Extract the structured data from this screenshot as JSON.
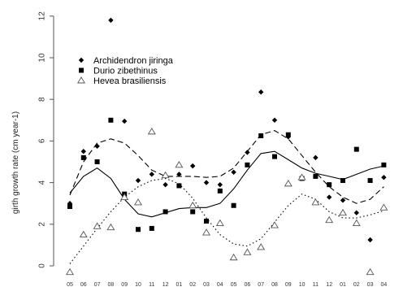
{
  "chart_data": {
    "type": "scatter",
    "title": "",
    "xlabel": "",
    "ylabel": "girth growth rate (cm year-1)",
    "ylim": [
      0,
      12
    ],
    "yticks": [
      0,
      2,
      4,
      6,
      8,
      10,
      12
    ],
    "categories": [
      "05",
      "06",
      "07",
      "08",
      "09",
      "10",
      "11",
      "12",
      "01",
      "02",
      "03",
      "04",
      "05",
      "06",
      "07",
      "08",
      "09",
      "10",
      "11",
      "12",
      "01",
      "02",
      "03",
      "04"
    ],
    "legend_position": "top-left",
    "series": [
      {
        "name": "Archidendron jiringa",
        "marker": "diamond",
        "color": "#000000",
        "line_style": "dashed",
        "points": [
          [
            1,
            3.0
          ],
          [
            2,
            5.5
          ],
          [
            3,
            5.75
          ],
          [
            4,
            11.8
          ],
          [
            5,
            6.95
          ],
          [
            6,
            4.1
          ],
          [
            7,
            4.4
          ],
          [
            8,
            3.9
          ],
          [
            9,
            4.4
          ],
          [
            10,
            4.8
          ],
          [
            11,
            4.0
          ],
          [
            12,
            3.9
          ],
          [
            13,
            4.5
          ],
          [
            14,
            5.45
          ],
          [
            15,
            8.35
          ],
          [
            16,
            7.0
          ],
          [
            17,
            6.2
          ],
          [
            18,
            4.25
          ],
          [
            19,
            5.2
          ],
          [
            20,
            3.3
          ],
          [
            21,
            3.15
          ],
          [
            22,
            2.55
          ],
          [
            23,
            1.25
          ],
          [
            24,
            4.25
          ]
        ],
        "trend": [
          [
            1,
            3.4
          ],
          [
            2,
            5.0
          ],
          [
            3,
            5.9
          ],
          [
            4,
            6.1
          ],
          [
            5,
            5.9
          ],
          [
            6,
            5.3
          ],
          [
            7,
            4.6
          ],
          [
            8,
            4.3
          ],
          [
            9,
            4.3
          ],
          [
            10,
            4.3
          ],
          [
            11,
            4.25
          ],
          [
            12,
            4.3
          ],
          [
            13,
            4.7
          ],
          [
            14,
            5.5
          ],
          [
            15,
            6.3
          ],
          [
            16,
            6.5
          ],
          [
            17,
            6.1
          ],
          [
            18,
            5.3
          ],
          [
            19,
            4.5
          ],
          [
            20,
            3.8
          ],
          [
            21,
            3.3
          ],
          [
            22,
            3.0
          ],
          [
            23,
            3.2
          ],
          [
            24,
            3.8
          ]
        ]
      },
      {
        "name": "Durio zibethinus",
        "marker": "square",
        "color": "#000000",
        "line_style": "solid",
        "points": [
          [
            1,
            2.85
          ],
          [
            2,
            5.2
          ],
          [
            3,
            5.0
          ],
          [
            4,
            7.0
          ],
          [
            5,
            3.45
          ],
          [
            6,
            1.75
          ],
          [
            7,
            1.8
          ],
          [
            8,
            2.6
          ],
          [
            9,
            3.85
          ],
          [
            10,
            2.6
          ],
          [
            11,
            2.15
          ],
          [
            12,
            3.6
          ],
          [
            13,
            2.9
          ],
          [
            14,
            4.85
          ],
          [
            15,
            6.25
          ],
          [
            16,
            5.25
          ],
          [
            17,
            6.3
          ],
          [
            18,
            4.2
          ],
          [
            19,
            4.3
          ],
          [
            20,
            3.9
          ],
          [
            21,
            4.1
          ],
          [
            22,
            5.6
          ],
          [
            23,
            4.1
          ],
          [
            24,
            4.85
          ]
        ],
        "trend": [
          [
            1,
            3.5
          ],
          [
            2,
            4.3
          ],
          [
            3,
            4.7
          ],
          [
            4,
            4.2
          ],
          [
            5,
            3.2
          ],
          [
            6,
            2.5
          ],
          [
            7,
            2.35
          ],
          [
            8,
            2.55
          ],
          [
            9,
            2.75
          ],
          [
            10,
            2.8
          ],
          [
            11,
            2.8
          ],
          [
            12,
            3.0
          ],
          [
            13,
            3.7
          ],
          [
            14,
            4.6
          ],
          [
            15,
            5.4
          ],
          [
            16,
            5.5
          ],
          [
            17,
            5.1
          ],
          [
            18,
            4.7
          ],
          [
            19,
            4.45
          ],
          [
            20,
            4.3
          ],
          [
            21,
            4.15
          ],
          [
            22,
            4.4
          ],
          [
            23,
            4.65
          ],
          [
            24,
            4.8
          ]
        ]
      },
      {
        "name": "Hevea brasiliensis",
        "marker": "triangle-open",
        "color": "#000000",
        "line_style": "dotted",
        "points": [
          [
            1,
            -0.3
          ],
          [
            2,
            1.5
          ],
          [
            3,
            1.9
          ],
          [
            4,
            1.85
          ],
          [
            5,
            3.3
          ],
          [
            6,
            3.05
          ],
          [
            7,
            6.45
          ],
          [
            8,
            4.35
          ],
          [
            9,
            4.85
          ],
          [
            10,
            2.9
          ],
          [
            11,
            1.6
          ],
          [
            12,
            2.05
          ],
          [
            13,
            0.4
          ],
          [
            14,
            0.65
          ],
          [
            15,
            0.9
          ],
          [
            16,
            1.95
          ],
          [
            17,
            3.95
          ],
          [
            18,
            4.25
          ],
          [
            19,
            3.05
          ],
          [
            20,
            2.2
          ],
          [
            21,
            2.55
          ],
          [
            22,
            2.05
          ],
          [
            23,
            -0.3
          ],
          [
            24,
            2.8
          ]
        ],
        "trend": [
          [
            1,
            0.1
          ],
          [
            2,
            0.95
          ],
          [
            3,
            1.8
          ],
          [
            4,
            2.6
          ],
          [
            5,
            3.3
          ],
          [
            6,
            3.8
          ],
          [
            7,
            4.1
          ],
          [
            8,
            4.2
          ],
          [
            9,
            3.95
          ],
          [
            10,
            3.25
          ],
          [
            11,
            2.3
          ],
          [
            12,
            1.5
          ],
          [
            13,
            1.05
          ],
          [
            14,
            0.95
          ],
          [
            15,
            1.3
          ],
          [
            16,
            2.1
          ],
          [
            17,
            2.9
          ],
          [
            18,
            3.45
          ],
          [
            19,
            3.2
          ],
          [
            20,
            2.6
          ],
          [
            21,
            2.3
          ],
          [
            22,
            2.3
          ],
          [
            23,
            2.45
          ],
          [
            24,
            2.65
          ]
        ]
      }
    ]
  }
}
